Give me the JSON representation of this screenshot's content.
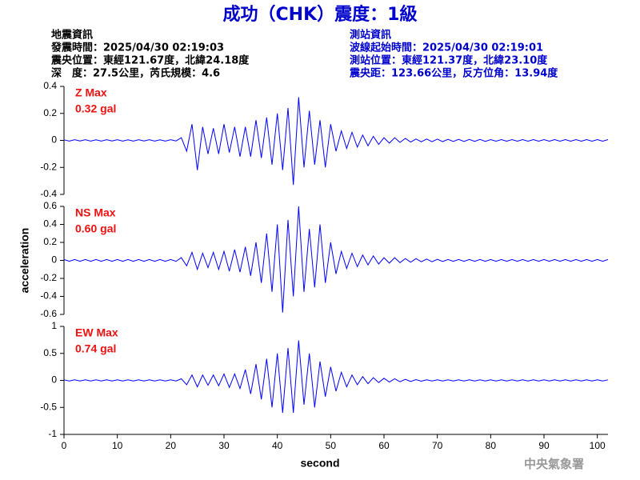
{
  "header": {
    "title": "成功（CHK）震度：1級",
    "left": [
      "地震資訊",
      "發震時間：2025/04/30 02:19:03",
      "震央位置：東經121.67度，北緯24.18度",
      "深　度：27.5公里，芮氏規模：4.6"
    ],
    "right": [
      "測站資訊",
      "波線起始時間：2025/04/30 02:19:01",
      "測站位置：東經121.37度，北緯23.10度",
      "震央距：123.66公里，反方位角：13.94度"
    ],
    "footer": "中央氣象署"
  },
  "chart_data": [
    {
      "type": "line",
      "color": "#0000ff",
      "annotations": [
        "Z Max",
        "0.32 gal"
      ],
      "xlim": [
        0,
        102
      ],
      "ylim": [
        -0.4,
        0.4
      ],
      "yticks": [
        -0.4,
        -0.2,
        0,
        0.2,
        0.4
      ],
      "x": [
        0,
        1,
        2,
        3,
        4,
        5,
        6,
        7,
        8,
        9,
        10,
        11,
        12,
        13,
        14,
        15,
        16,
        17,
        18,
        19,
        20,
        21,
        22,
        23,
        24,
        25,
        26,
        27,
        28,
        29,
        30,
        31,
        32,
        33,
        34,
        35,
        36,
        37,
        38,
        39,
        40,
        41,
        42,
        43,
        44,
        45,
        46,
        47,
        48,
        49,
        50,
        51,
        52,
        53,
        54,
        55,
        56,
        57,
        58,
        59,
        60,
        61,
        62,
        63,
        64,
        65,
        66,
        67,
        68,
        69,
        70,
        71,
        72,
        73,
        74,
        75,
        76,
        77,
        78,
        79,
        80,
        81,
        82,
        83,
        84,
        85,
        86,
        87,
        88,
        89,
        90,
        91,
        92,
        93,
        94,
        95,
        96,
        97,
        98,
        99,
        100,
        101,
        102
      ],
      "values": [
        0.004,
        -0.005,
        0.005,
        -0.004,
        0.005,
        -0.005,
        0.004,
        -0.005,
        0.005,
        -0.004,
        0.005,
        -0.005,
        0.004,
        -0.005,
        0.005,
        -0.004,
        0.005,
        -0.005,
        0.004,
        -0.005,
        0.005,
        -0.004,
        0.02,
        -0.08,
        0.12,
        -0.22,
        0.1,
        -0.1,
        0.09,
        -0.1,
        0.12,
        -0.09,
        0.1,
        -0.12,
        0.1,
        -0.12,
        0.15,
        -0.13,
        0.17,
        -0.18,
        0.2,
        -0.22,
        0.24,
        -0.33,
        0.32,
        -0.2,
        0.22,
        -0.18,
        0.15,
        -0.2,
        0.12,
        -0.08,
        0.07,
        -0.06,
        0.06,
        -0.05,
        0.04,
        -0.04,
        0.03,
        -0.03,
        0.02,
        -0.02,
        0.02,
        -0.015,
        0.015,
        -0.012,
        0.01,
        -0.01,
        0.01,
        -0.009,
        0.009,
        -0.009,
        0.008,
        -0.008,
        0.008,
        -0.008,
        0.007,
        -0.007,
        0.007,
        -0.007,
        0.006,
        -0.006,
        0.006,
        -0.006,
        0.006,
        -0.006,
        0.006,
        -0.006,
        0.006,
        -0.006,
        0.006,
        -0.006,
        0.006,
        -0.006,
        0.006,
        -0.006,
        0.006,
        -0.006,
        0.006,
        -0.006,
        0.006,
        -0.006,
        0.006
      ]
    },
    {
      "type": "line",
      "color": "#0000ff",
      "annotations": [
        "NS Max",
        "0.60 gal"
      ],
      "ylabel": "acceleration",
      "xlim": [
        0,
        102
      ],
      "ylim": [
        -0.6,
        0.6
      ],
      "yticks": [
        -0.6,
        -0.4,
        -0.2,
        0,
        0.2,
        0.4,
        0.6
      ],
      "x": [
        0,
        1,
        2,
        3,
        4,
        5,
        6,
        7,
        8,
        9,
        10,
        11,
        12,
        13,
        14,
        15,
        16,
        17,
        18,
        19,
        20,
        21,
        22,
        23,
        24,
        25,
        26,
        27,
        28,
        29,
        30,
        31,
        32,
        33,
        34,
        35,
        36,
        37,
        38,
        39,
        40,
        41,
        42,
        43,
        44,
        45,
        46,
        47,
        48,
        49,
        50,
        51,
        52,
        53,
        54,
        55,
        56,
        57,
        58,
        59,
        60,
        61,
        62,
        63,
        64,
        65,
        66,
        67,
        68,
        69,
        70,
        71,
        72,
        73,
        74,
        75,
        76,
        77,
        78,
        79,
        80,
        81,
        82,
        83,
        84,
        85,
        86,
        87,
        88,
        89,
        90,
        91,
        92,
        93,
        94,
        95,
        96,
        97,
        98,
        99,
        100,
        101,
        102
      ],
      "values": [
        0.01,
        -0.01,
        0.01,
        -0.01,
        0.01,
        -0.01,
        0.01,
        -0.01,
        0.01,
        -0.01,
        0.01,
        -0.01,
        0.01,
        -0.01,
        0.01,
        -0.01,
        0.01,
        -0.01,
        0.01,
        -0.01,
        0.01,
        -0.01,
        0.03,
        -0.06,
        0.09,
        -0.1,
        0.08,
        -0.08,
        0.09,
        -0.1,
        0.1,
        -0.12,
        0.12,
        -0.13,
        0.15,
        -0.17,
        0.2,
        -0.25,
        0.3,
        -0.35,
        0.4,
        -0.58,
        0.45,
        -0.4,
        0.6,
        -0.35,
        0.35,
        -0.3,
        0.4,
        -0.25,
        0.2,
        -0.15,
        0.1,
        -0.09,
        0.08,
        -0.07,
        0.06,
        -0.05,
        0.05,
        -0.04,
        0.03,
        -0.03,
        0.03,
        -0.025,
        0.02,
        -0.02,
        0.02,
        -0.015,
        0.015,
        -0.015,
        0.012,
        -0.012,
        0.01,
        -0.01,
        0.01,
        -0.01,
        0.01,
        -0.01,
        0.01,
        -0.01,
        0.01,
        -0.01,
        0.01,
        -0.01,
        0.01,
        -0.01,
        0.01,
        -0.01,
        0.01,
        -0.01,
        0.01,
        -0.01,
        0.01,
        -0.01,
        0.01,
        -0.01,
        0.01,
        -0.01,
        0.01,
        -0.01,
        0.01,
        -0.01,
        0.01
      ]
    },
    {
      "type": "line",
      "color": "#0000ff",
      "annotations": [
        "EW Max",
        "0.74 gal"
      ],
      "xlabel": "second",
      "xlim": [
        0,
        102
      ],
      "xticks": [
        0,
        10,
        20,
        30,
        40,
        50,
        60,
        70,
        80,
        90,
        100
      ],
      "ylim": [
        -1,
        1
      ],
      "yticks": [
        -1,
        -0.5,
        0,
        0.5,
        1
      ],
      "x": [
        0,
        1,
        2,
        3,
        4,
        5,
        6,
        7,
        8,
        9,
        10,
        11,
        12,
        13,
        14,
        15,
        16,
        17,
        18,
        19,
        20,
        21,
        22,
        23,
        24,
        25,
        26,
        27,
        28,
        29,
        30,
        31,
        32,
        33,
        34,
        35,
        36,
        37,
        38,
        39,
        40,
        41,
        42,
        43,
        44,
        45,
        46,
        47,
        48,
        49,
        50,
        51,
        52,
        53,
        54,
        55,
        56,
        57,
        58,
        59,
        60,
        61,
        62,
        63,
        64,
        65,
        66,
        67,
        68,
        69,
        70,
        71,
        72,
        73,
        74,
        75,
        76,
        77,
        78,
        79,
        80,
        81,
        82,
        83,
        84,
        85,
        86,
        87,
        88,
        89,
        90,
        91,
        92,
        93,
        94,
        95,
        96,
        97,
        98,
        99,
        100,
        101,
        102
      ],
      "values": [
        0.01,
        -0.01,
        0.01,
        -0.01,
        0.01,
        -0.01,
        0.01,
        -0.01,
        0.01,
        -0.01,
        0.01,
        -0.01,
        0.01,
        -0.01,
        0.01,
        -0.01,
        0.01,
        -0.01,
        0.01,
        -0.01,
        0.01,
        -0.01,
        0.03,
        -0.08,
        0.1,
        -0.12,
        0.1,
        -0.09,
        0.1,
        -0.1,
        0.12,
        -0.13,
        0.12,
        -0.15,
        0.2,
        -0.25,
        0.3,
        -0.35,
        0.4,
        -0.5,
        0.5,
        -0.6,
        0.6,
        -0.6,
        0.74,
        -0.45,
        0.5,
        -0.5,
        0.35,
        -0.3,
        0.25,
        -0.2,
        0.15,
        -0.12,
        0.1,
        -0.08,
        0.07,
        -0.06,
        0.05,
        -0.04,
        0.04,
        -0.03,
        0.03,
        -0.025,
        0.02,
        -0.02,
        0.015,
        -0.015,
        0.01,
        -0.01,
        0.01,
        -0.01,
        0.01,
        -0.01,
        0.01,
        -0.01,
        0.01,
        -0.01,
        0.01,
        -0.01,
        0.01,
        -0.01,
        0.01,
        -0.01,
        0.01,
        -0.01,
        0.01,
        -0.01,
        0.01,
        -0.01,
        0.01,
        -0.01,
        0.01,
        -0.01,
        0.01,
        -0.01,
        0.01,
        -0.01,
        0.01,
        -0.01,
        0.01,
        -0.01,
        0.01
      ]
    }
  ]
}
